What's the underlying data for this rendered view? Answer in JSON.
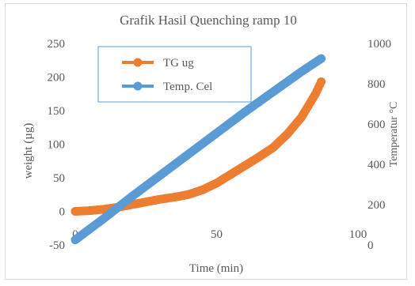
{
  "chart_data": {
    "type": "scatter",
    "title": "Grafik Hasil Quenching  ramp 10",
    "xlabel": "Time (min)",
    "ylabel": "weight (µg)",
    "y2label": "Temperatur °C",
    "xlim": [
      0,
      100
    ],
    "ylim": [
      -50,
      250
    ],
    "y2lim": [
      0,
      1000
    ],
    "x_ticks": [
      "0",
      "50",
      "100"
    ],
    "y_ticks": [
      "-50",
      "0",
      "50",
      "100",
      "150",
      "200",
      "250"
    ],
    "y2_ticks": [
      "0",
      "200",
      "400",
      "600",
      "800",
      "1000"
    ],
    "grid": false,
    "legend_position": "top-left",
    "series": [
      {
        "name": "TG ug",
        "axis": "left",
        "color": "#ed7d31",
        "x": [
          0,
          5,
          10,
          15,
          20,
          25,
          30,
          35,
          40,
          45,
          50,
          55,
          60,
          65,
          70,
          75,
          80,
          85,
          87
        ],
        "y": [
          0,
          1,
          3,
          6,
          10,
          14,
          18,
          21,
          25,
          32,
          42,
          55,
          68,
          81,
          95,
          115,
          140,
          175,
          193
        ]
      },
      {
        "name": "Temp. Cel",
        "axis": "right",
        "color": "#5b9bd5",
        "x": [
          0,
          10,
          20,
          30,
          40,
          50,
          60,
          70,
          80,
          87
        ],
        "y": [
          25,
          130,
          240,
          345,
          450,
          555,
          660,
          760,
          860,
          925
        ]
      }
    ]
  }
}
